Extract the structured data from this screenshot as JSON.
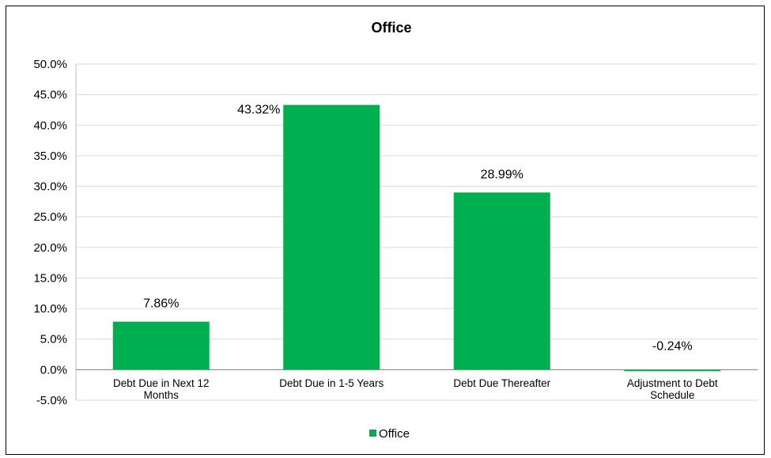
{
  "chart_data": {
    "type": "bar",
    "title": "Office",
    "categories": [
      [
        "Debt Due in Next 12",
        "Months"
      ],
      [
        "Debt Due in 1-5 Years"
      ],
      [
        "Debt Due Thereafter"
      ],
      [
        "Adjustment to Debt",
        "Schedule"
      ]
    ],
    "series": [
      {
        "name": "Office",
        "values": [
          7.86,
          43.32,
          28.99,
          -0.24
        ],
        "data_labels": [
          "7.86%",
          "43.32%",
          "28.99%",
          "-0.24%"
        ],
        "color": "#00b050"
      }
    ],
    "ylim": [
      -5,
      50
    ],
    "ytick_step": 5,
    "ytick_labels": [
      "-5.0%",
      "0.0%",
      "5.0%",
      "10.0%",
      "15.0%",
      "20.0%",
      "25.0%",
      "30.0%",
      "35.0%",
      "40.0%",
      "45.0%",
      "50.0%"
    ],
    "grid": true,
    "gridline_color": "#d9d9d9",
    "legend_position": "bottom"
  }
}
